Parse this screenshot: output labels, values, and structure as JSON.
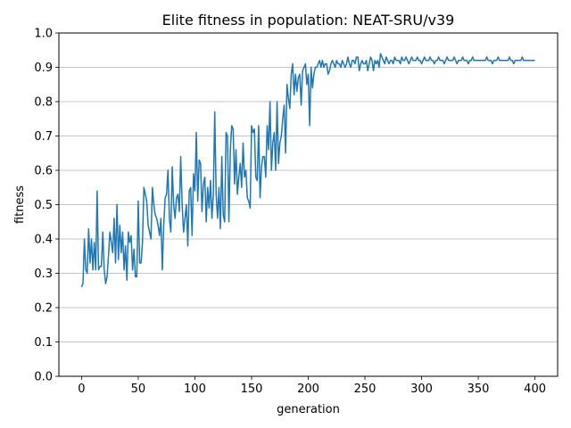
{
  "chart_data": {
    "type": "line",
    "title": "Elite fitness in population: NEAT-SRU/v39",
    "xlabel": "generation",
    "ylabel": "fitness",
    "xlim": [
      -20,
      420
    ],
    "ylim": [
      0.0,
      1.0
    ],
    "xticks": [
      0,
      50,
      100,
      150,
      200,
      250,
      300,
      350,
      400
    ],
    "yticks": [
      "0.0",
      "0.1",
      "0.2",
      "0.3",
      "0.4",
      "0.5",
      "0.6",
      "0.7",
      "0.8",
      "0.9",
      "1.0"
    ],
    "grid": "y-axis only",
    "line_color": "#1f77b4",
    "series": [
      {
        "values": [
          0.26,
          0.27,
          0.4,
          0.31,
          0.3,
          0.43,
          0.33,
          0.4,
          0.31,
          0.39,
          0.31,
          0.54,
          0.31,
          0.32,
          0.32,
          0.42,
          0.31,
          0.27,
          0.29,
          0.35,
          0.42,
          0.39,
          0.36,
          0.46,
          0.33,
          0.5,
          0.34,
          0.44,
          0.36,
          0.42,
          0.31,
          0.38,
          0.28,
          0.42,
          0.39,
          0.41,
          0.31,
          0.37,
          0.29,
          0.29,
          0.51,
          0.33,
          0.33,
          0.39,
          0.55,
          0.53,
          0.51,
          0.44,
          0.42,
          0.4,
          0.55,
          0.5,
          0.47,
          0.46,
          0.44,
          0.41,
          0.46,
          0.31,
          0.44,
          0.52,
          0.53,
          0.6,
          0.46,
          0.42,
          0.61,
          0.5,
          0.46,
          0.52,
          0.53,
          0.48,
          0.64,
          0.5,
          0.42,
          0.46,
          0.5,
          0.38,
          0.54,
          0.55,
          0.41,
          0.59,
          0.54,
          0.71,
          0.51,
          0.63,
          0.62,
          0.48,
          0.56,
          0.58,
          0.45,
          0.55,
          0.49,
          0.57,
          0.46,
          0.53,
          0.77,
          0.53,
          0.46,
          0.55,
          0.43,
          0.64,
          0.47,
          0.45,
          0.71,
          0.7,
          0.45,
          0.66,
          0.73,
          0.72,
          0.56,
          0.66,
          0.53,
          0.58,
          0.62,
          0.55,
          0.68,
          0.58,
          0.6,
          0.52,
          0.51,
          0.49,
          0.73,
          0.71,
          0.72,
          0.58,
          0.57,
          0.73,
          0.52,
          0.61,
          0.64,
          0.64,
          0.58,
          0.73,
          0.66,
          0.8,
          0.6,
          0.68,
          0.71,
          0.6,
          0.8,
          0.62,
          0.68,
          0.7,
          0.75,
          0.79,
          0.65,
          0.85,
          0.81,
          0.78,
          0.88,
          0.91,
          0.82,
          0.88,
          0.83,
          0.87,
          0.88,
          0.79,
          0.89,
          0.9,
          0.91,
          0.85,
          0.88,
          0.73,
          0.9,
          0.84,
          0.88,
          0.9,
          0.9,
          0.91,
          0.92,
          0.9,
          0.92,
          0.9,
          0.91,
          0.91,
          0.88,
          0.89,
          0.91,
          0.92,
          0.91,
          0.9,
          0.92,
          0.91,
          0.91,
          0.9,
          0.92,
          0.91,
          0.9,
          0.91,
          0.93,
          0.91,
          0.9,
          0.92,
          0.92,
          0.91,
          0.93,
          0.93,
          0.89,
          0.91,
          0.92,
          0.91,
          0.91,
          0.92,
          0.89,
          0.91,
          0.93,
          0.92,
          0.89,
          0.92,
          0.91,
          0.92,
          0.9,
          0.94,
          0.93,
          0.92,
          0.91,
          0.93,
          0.92,
          0.91,
          0.92,
          0.92,
          0.91,
          0.93,
          0.92,
          0.92,
          0.92,
          0.91,
          0.93,
          0.92,
          0.92,
          0.93,
          0.92,
          0.91,
          0.92,
          0.93,
          0.92,
          0.92,
          0.92,
          0.93,
          0.92,
          0.92,
          0.91,
          0.92,
          0.93,
          0.92,
          0.92,
          0.92,
          0.93,
          0.92,
          0.92,
          0.91,
          0.92,
          0.92,
          0.93,
          0.92,
          0.92,
          0.92,
          0.91,
          0.92,
          0.93,
          0.92,
          0.92,
          0.92,
          0.92,
          0.93,
          0.92,
          0.91,
          0.92,
          0.92,
          0.92,
          0.93,
          0.92,
          0.92,
          0.92,
          0.91,
          0.92,
          0.92,
          0.93,
          0.92,
          0.92,
          0.92,
          0.92,
          0.92,
          0.92,
          0.92,
          0.92,
          0.92,
          0.93,
          0.92,
          0.92,
          0.92,
          0.91,
          0.92,
          0.92,
          0.92,
          0.93,
          0.92,
          0.92,
          0.92,
          0.92,
          0.92,
          0.92,
          0.92,
          0.93,
          0.92,
          0.92,
          0.91,
          0.92,
          0.92,
          0.92,
          0.92,
          0.92,
          0.93,
          0.92,
          0.92,
          0.92,
          0.92,
          0.92,
          0.92,
          0.92,
          0.92,
          0.92
        ]
      }
    ]
  }
}
